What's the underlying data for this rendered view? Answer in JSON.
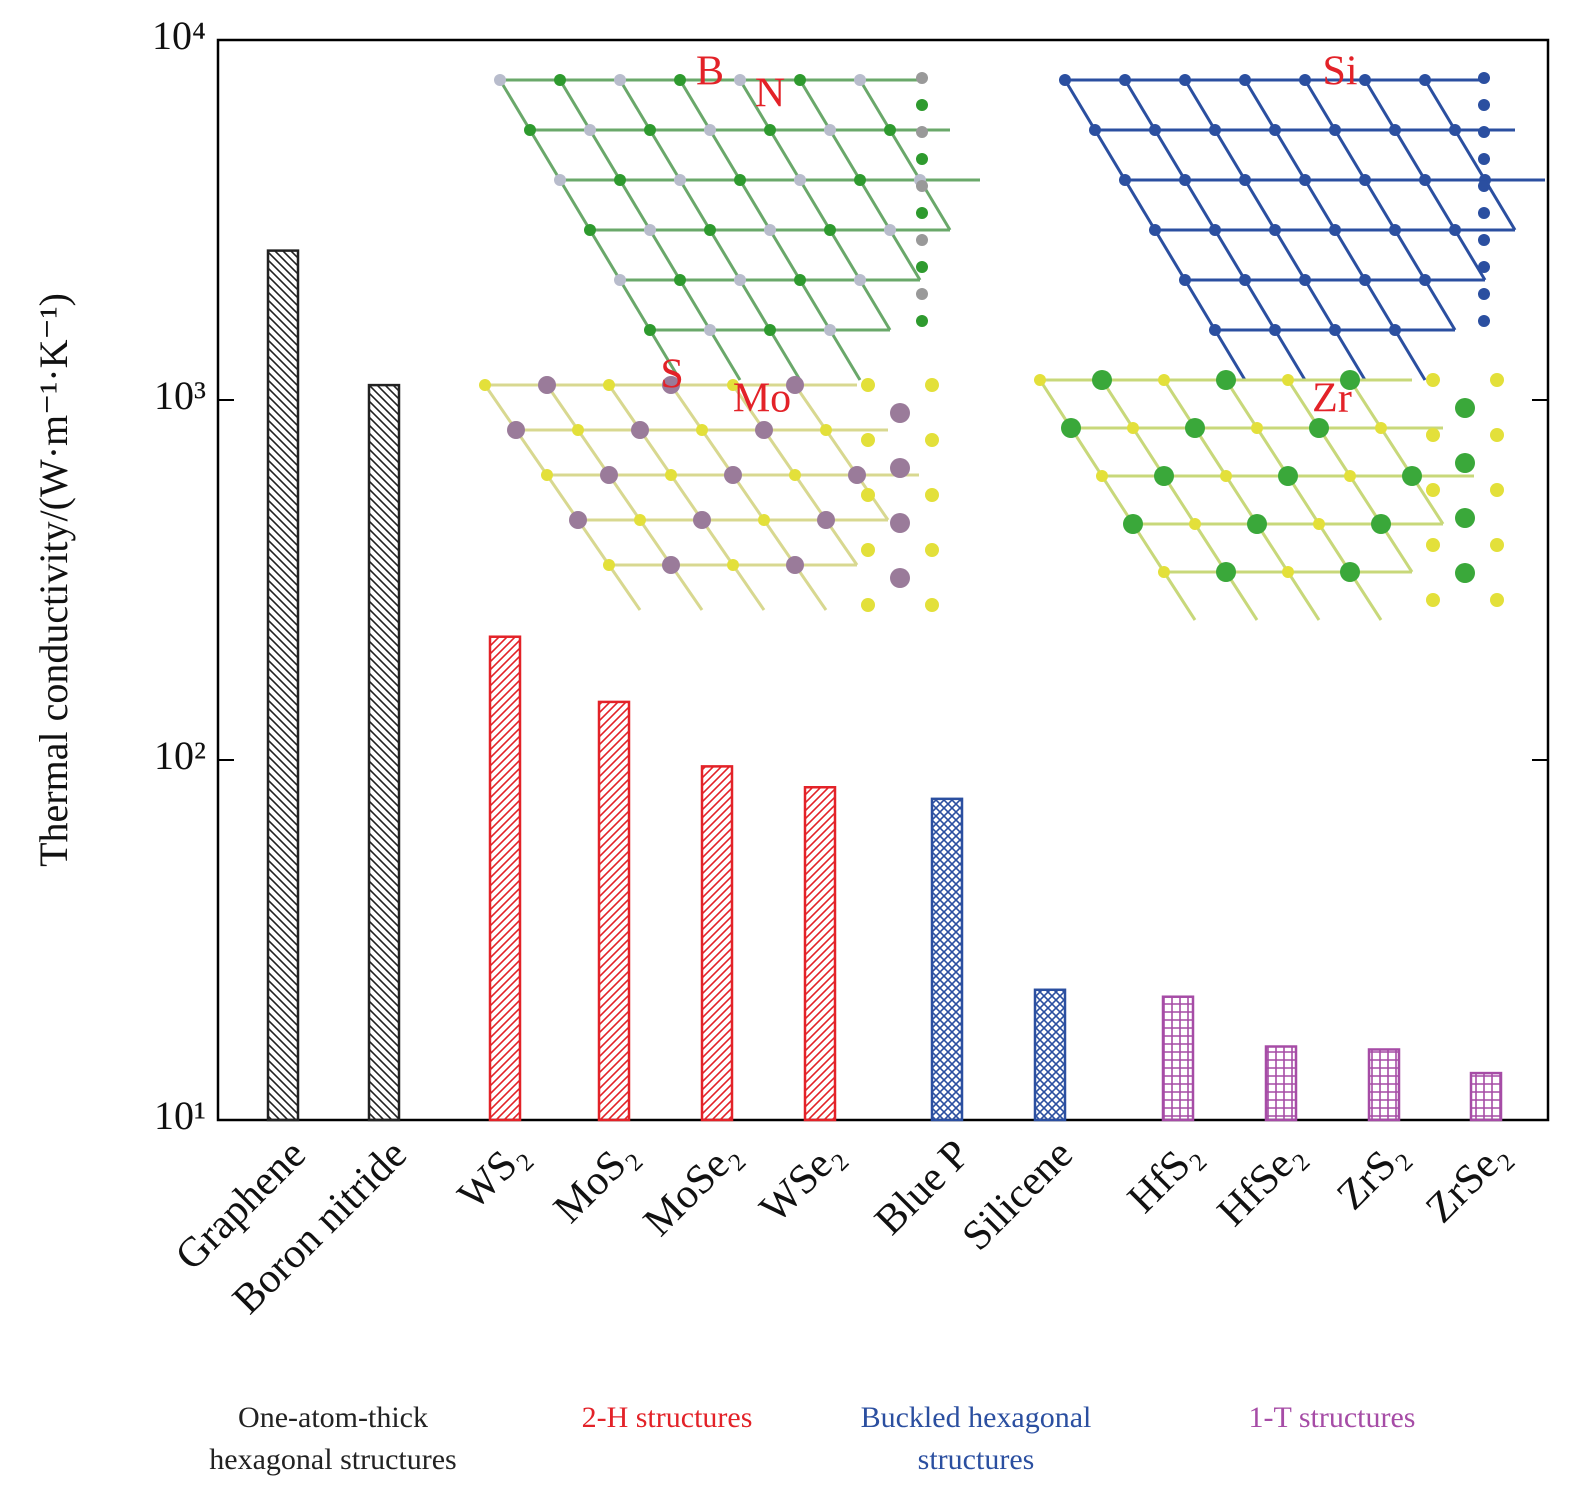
{
  "chart_data": {
    "type": "bar",
    "y_label": "Thermal conductivity/(W·m⁻¹·K⁻¹)",
    "log_y": true,
    "ylim": [
      10,
      10000
    ],
    "yticks": [
      {
        "value": 10,
        "label": "10¹"
      },
      {
        "value": 100,
        "label": "10²"
      },
      {
        "value": 1000,
        "label": "10³"
      },
      {
        "value": 10000,
        "label": "10⁴"
      }
    ],
    "categories": [
      "Graphene",
      "Boron nitride",
      "WS₂",
      "MoS₂",
      "MoSe₂",
      "WSe₂",
      "Blue P",
      "Silicene",
      "HfS₂",
      "HfSe₂",
      "ZrS₂",
      "ZrSe₂"
    ],
    "values": [
      2600,
      1100,
      220,
      145,
      96,
      84,
      78,
      23,
      22,
      16,
      15.7,
      13.5
    ],
    "category_groups": [
      0,
      0,
      1,
      1,
      1,
      1,
      2,
      2,
      3,
      3,
      3,
      3
    ],
    "groups": [
      {
        "lines": [
          "One-atom-thick",
          "hexagonal structures"
        ],
        "color": "#222222",
        "hatch": "backslash"
      },
      {
        "lines": [
          "2-H structures"
        ],
        "color": "#e32228",
        "hatch": "slash"
      },
      {
        "lines": [
          "Buckled hexagonal",
          "structures"
        ],
        "color": "#2b4fa0",
        "hatch": "cross"
      },
      {
        "lines": [
          "1-T structures"
        ],
        "color": "#a64ca6",
        "hatch": "grid"
      }
    ],
    "inset_labels": [
      "B",
      "N",
      "Si",
      "S",
      "Mo",
      "Zr"
    ]
  }
}
